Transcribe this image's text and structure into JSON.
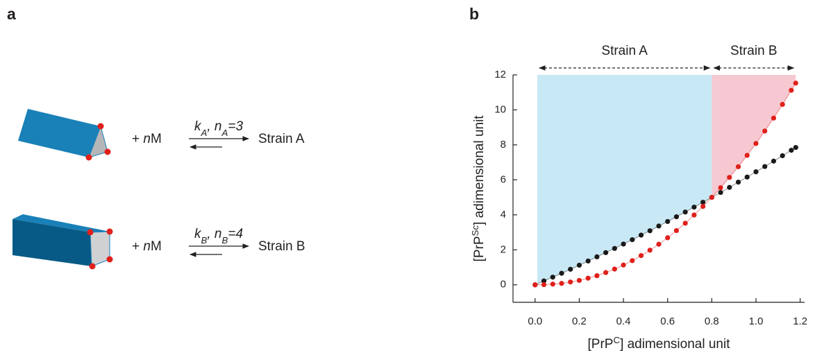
{
  "panel_a": {
    "label": "a",
    "reactions": [
      {
        "reagent": [
          "+ ",
          "n",
          "M"
        ],
        "rate": [
          "k",
          "A",
          ", n",
          "A",
          "=3"
        ],
        "product": "Strain A"
      },
      {
        "reagent": [
          "+ ",
          "n",
          "M"
        ],
        "rate": [
          "k",
          "B",
          ", n",
          "B",
          "=4"
        ],
        "product": "Strain B"
      }
    ]
  },
  "chart_data": {
    "type": "scatter",
    "label": "b",
    "xlabel": [
      "[PrP",
      "C",
      "] adimensional unit"
    ],
    "ylabel": [
      "[PrP",
      "Sc",
      "] adimensional unit"
    ],
    "xlim": [
      -0.1,
      1.22
    ],
    "ylim": [
      -1,
      12
    ],
    "xticks": [
      {
        "value": 0,
        "label": "0.0"
      },
      0.2,
      0.4,
      0.6,
      0.8,
      {
        "value": 1,
        "label": "1.0"
      },
      1.2
    ],
    "yticks": [
      0,
      2,
      4,
      6,
      8,
      10,
      12
    ],
    "x": [
      0,
      0.04,
      0.08,
      0.12,
      0.16,
      0.2,
      0.24,
      0.28,
      0.32,
      0.36,
      0.4,
      0.44,
      0.48,
      0.52,
      0.56,
      0.6,
      0.64,
      0.68,
      0.72,
      0.76,
      0.8,
      0.84,
      0.88,
      0.92,
      0.96,
      1.0,
      1.04,
      1.08,
      1.12,
      1.16,
      1.18
    ],
    "series": [
      {
        "color": "#1a1a1a",
        "values": [
          0,
          0.22,
          0.44,
          0.66,
          0.89,
          1.12,
          1.36,
          1.6,
          1.84,
          2.08,
          2.33,
          2.58,
          2.84,
          3.09,
          3.36,
          3.62,
          3.89,
          4.16,
          4.44,
          4.72,
          5.0,
          5.28,
          5.57,
          5.87,
          6.16,
          6.46,
          6.76,
          7.07,
          7.38,
          7.69,
          7.85
        ]
      },
      {
        "color": "#e0201b",
        "values": [
          0,
          0.01,
          0.04,
          0.08,
          0.16,
          0.25,
          0.38,
          0.52,
          0.7,
          0.9,
          1.13,
          1.38,
          1.67,
          1.98,
          2.32,
          2.69,
          3.1,
          3.52,
          3.99,
          4.48,
          5.0,
          5.55,
          6.14,
          6.75,
          7.4,
          8.08,
          8.79,
          9.53,
          10.31,
          11.12,
          11.53
        ]
      }
    ],
    "regions": [
      {
        "name": "Strain A",
        "x": [
          0.01,
          0.8
        ],
        "color": "#c8e8f5"
      },
      {
        "name": "Strain B",
        "x": [
          0.8,
          1.18
        ],
        "color": "#f6c9d2"
      }
    ]
  }
}
